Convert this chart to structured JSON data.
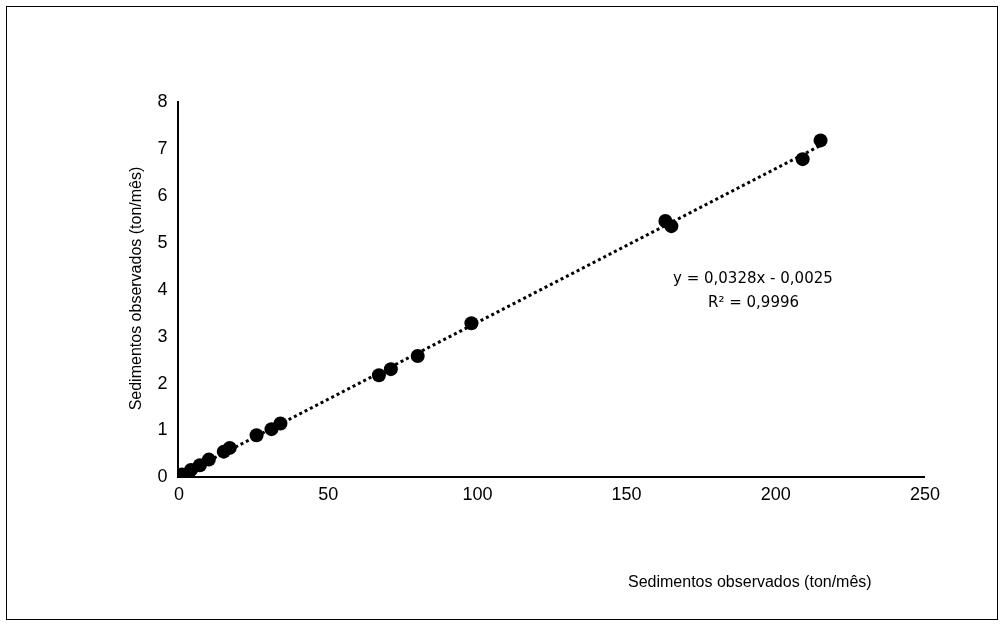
{
  "chart_data": {
    "type": "scatter",
    "xlabel": "Sedimentos observados (ton/mês)",
    "ylabel": "Sedimentos observados (ton/mês)",
    "xlim": [
      0,
      250
    ],
    "xticks": [
      0,
      50,
      100,
      150,
      200,
      250
    ],
    "ylim": [
      0,
      8
    ],
    "yticks": [
      0,
      1,
      2,
      3,
      4,
      5,
      6,
      7,
      8
    ],
    "grid": false,
    "marker": "circle",
    "annotations": [
      "y = 0,0328x - 0,0025",
      "R² = 0,9996"
    ],
    "series": [
      {
        "color": "#000000",
        "x": [
          1,
          4,
          7,
          10,
          15,
          17,
          26,
          31,
          34,
          67,
          71,
          80,
          98,
          163,
          165,
          209,
          215
        ],
        "values": [
          0.03,
          0.13,
          0.23,
          0.35,
          0.52,
          0.6,
          0.87,
          1.0,
          1.12,
          2.15,
          2.28,
          2.56,
          3.26,
          5.44,
          5.33,
          6.76,
          7.16
        ]
      },
      {
        "type": "line",
        "color": "#000000",
        "line_style": "dotted",
        "marker": "none",
        "x": [
          1,
          215
        ],
        "values": [
          0.03,
          7.05
        ]
      }
    ]
  }
}
